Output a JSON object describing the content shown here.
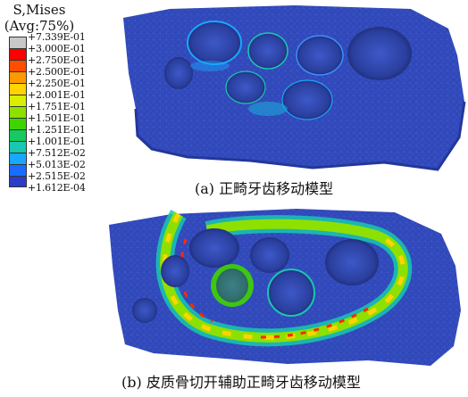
{
  "chart_data": {
    "type": "heatmap",
    "title": "S,Mises",
    "subtitle": "(Avg:75%)",
    "legend": {
      "placement": "top-left",
      "labels": [
        "+7.339E-01",
        "+3.000E-01",
        "+2.750E-01",
        "+2.500E-01",
        "+2.250E-01",
        "+2.001E-01",
        "+1.751E-01",
        "+1.501E-01",
        "+1.251E-01",
        "+1.001E-01",
        "+7.512E-02",
        "+5.013E-02",
        "+2.515E-02",
        "+1.612E-04"
      ],
      "values": [
        0.7339,
        0.3,
        0.275,
        0.25,
        0.225,
        0.2001,
        0.1751,
        0.1501,
        0.1251,
        0.1001,
        0.07512,
        0.05013,
        0.02515,
        0.0001612
      ],
      "colors": [
        "#c8c8c8",
        "#ff0000",
        "#ff4d00",
        "#ff9900",
        "#ffd400",
        "#d8f000",
        "#8ee000",
        "#3fd400",
        "#18c860",
        "#18c8b0",
        "#18a8ff",
        "#1a6cff",
        "#2a3cc8"
      ]
    },
    "panels": [
      {
        "caption": "(a) 正畸牙齿移动模型"
      },
      {
        "caption": "(b) 皮质骨切开辅助正畸牙齿移动模型"
      }
    ]
  },
  "colors": {
    "model_base": "#2f47b8",
    "mesh": "#5a74e0",
    "hole_shade": "#1c2a6e"
  }
}
